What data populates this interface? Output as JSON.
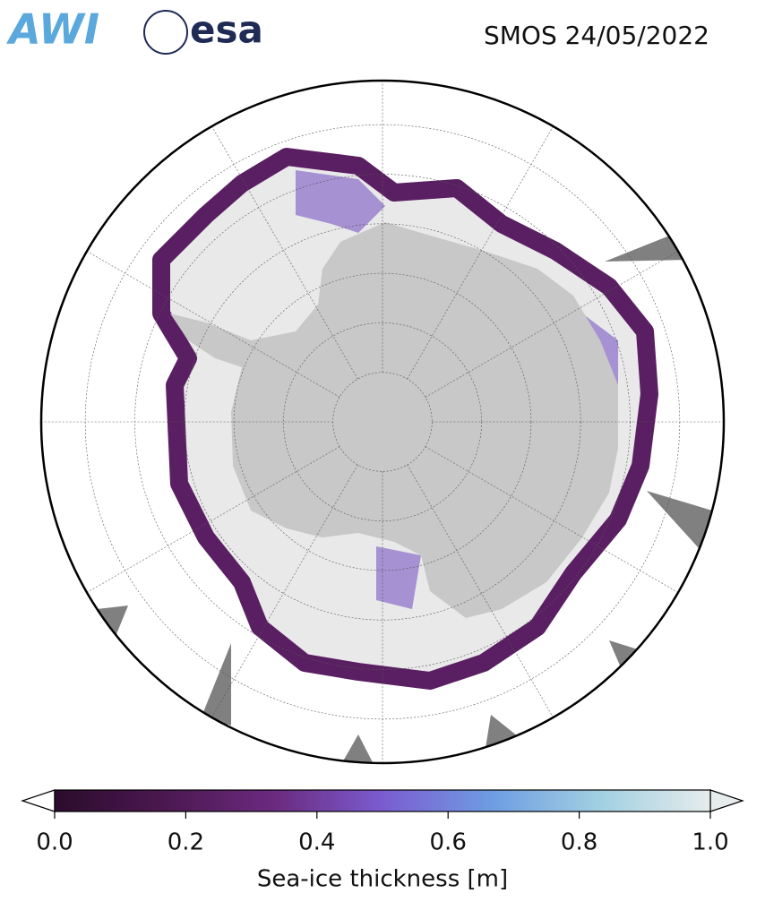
{
  "logos": [
    "AWI",
    "esa"
  ],
  "title": "SMOS 24/05/2022",
  "colorbar": {
    "label": "Sea-ice thickness [m]",
    "lim": [
      0,
      1
    ],
    "ticks": [
      {
        "value": 0,
        "label": "0.0"
      },
      {
        "value": 0.2,
        "label": "0.2"
      },
      {
        "value": 0.4,
        "label": "0.4"
      },
      {
        "value": 0.6,
        "label": "0.6"
      },
      {
        "value": 0.8,
        "label": "0.8"
      },
      {
        "value": 1,
        "label": "1.0"
      }
    ],
    "colors": [
      "#2a0c2c",
      "#4b1850",
      "#6a2a7e",
      "#7b5cd0",
      "#6e9de2",
      "#a2d0e2",
      "#e6ecec"
    ]
  }
}
